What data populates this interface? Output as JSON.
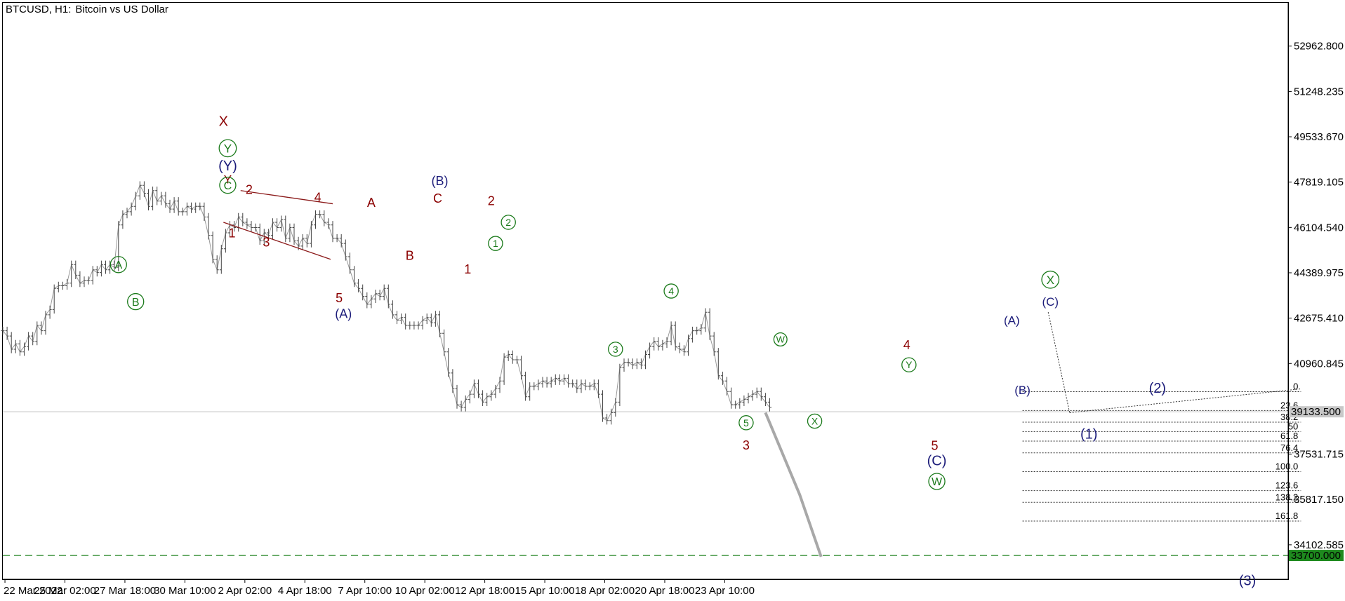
{
  "header": {
    "symbol": "BTCUSD",
    "timeframe": "H1:",
    "description": "Bitcoin vs US Dollar"
  },
  "chart_data": {
    "type": "line",
    "title": "BTCUSD, H1:  Bitcoin vs US Dollar",
    "ylim": [
      32800,
      54600
    ],
    "y_ticks": [
      52962.8,
      51248.235,
      49533.67,
      47819.105,
      46104.54,
      44389.975,
      42675.41,
      40960.845,
      37531.715,
      35817.15,
      34102.585
    ],
    "y_tick_labels": [
      "52962.800",
      "51248.235",
      "49533.670",
      "47819.105",
      "46104.540",
      "44389.975",
      "42675.410",
      "40960.845",
      "37531.715",
      "35817.150",
      "34102.585"
    ],
    "x_tick_labels": [
      "22 Mar 2022",
      "25 Mar 02:00",
      "27 Mar 18:00",
      "30 Mar 10:00",
      "2 Apr 02:00",
      "4 Apr 18:00",
      "7 Apr 10:00",
      "10 Apr 02:00",
      "12 Apr 18:00",
      "15 Apr 10:00",
      "18 Apr 02:00",
      "20 Apr 18:00",
      "23 Apr 10:00"
    ],
    "x_tick_pos": [
      0.5,
      14.5,
      28.5,
      42.5,
      56.5,
      70.5,
      84.5,
      98.5,
      112.5,
      126.5,
      140.5,
      154.5,
      168.5
    ],
    "xlim": [
      0,
      200
    ],
    "price_path": [
      [
        0,
        42200
      ],
      [
        1,
        42000
      ],
      [
        2,
        41500
      ],
      [
        3,
        41700
      ],
      [
        4,
        41400
      ],
      [
        5,
        41600
      ],
      [
        6,
        42000
      ],
      [
        7,
        41800
      ],
      [
        8,
        42400
      ],
      [
        9,
        42200
      ],
      [
        10,
        42800
      ],
      [
        11,
        43000
      ],
      [
        12,
        43800
      ],
      [
        13,
        43900
      ],
      [
        14,
        43900
      ],
      [
        15,
        44000
      ],
      [
        16,
        44700
      ],
      [
        17,
        44300
      ],
      [
        18,
        44000
      ],
      [
        19,
        44100
      ],
      [
        20,
        44100
      ],
      [
        21,
        44500
      ],
      [
        22,
        44400
      ],
      [
        23,
        44700
      ],
      [
        24,
        44500
      ],
      [
        25,
        44700
      ],
      [
        26,
        44600
      ],
      [
        27,
        46200
      ],
      [
        28,
        46600
      ],
      [
        29,
        46700
      ],
      [
        30,
        46900
      ],
      [
        31,
        47300
      ],
      [
        32,
        47700
      ],
      [
        33,
        47400
      ],
      [
        34,
        46900
      ],
      [
        35,
        47500
      ],
      [
        36,
        47100
      ],
      [
        37,
        47300
      ],
      [
        38,
        47000
      ],
      [
        39,
        46800
      ],
      [
        40,
        47100
      ],
      [
        41,
        46700
      ],
      [
        42,
        46700
      ],
      [
        43,
        46900
      ],
      [
        44,
        46800
      ],
      [
        45,
        46900
      ],
      [
        46,
        46900
      ],
      [
        47,
        46500
      ],
      [
        48,
        45800
      ],
      [
        49,
        44900
      ],
      [
        50,
        44500
      ],
      [
        51,
        45300
      ],
      [
        52,
        45900
      ],
      [
        53,
        46200
      ],
      [
        54,
        46100
      ],
      [
        55,
        46500
      ],
      [
        56,
        46300
      ],
      [
        57,
        46200
      ],
      [
        58,
        46100
      ],
      [
        59,
        46100
      ],
      [
        60,
        45600
      ],
      [
        61,
        45900
      ],
      [
        62,
        45800
      ],
      [
        63,
        46300
      ],
      [
        64,
        46100
      ],
      [
        65,
        46400
      ],
      [
        66,
        45700
      ],
      [
        67,
        46100
      ],
      [
        68,
        45600
      ],
      [
        69,
        45400
      ],
      [
        70,
        45700
      ],
      [
        71,
        45500
      ],
      [
        72,
        46200
      ],
      [
        73,
        46600
      ],
      [
        74,
        46600
      ],
      [
        75,
        46300
      ],
      [
        76,
        46200
      ],
      [
        77,
        45700
      ],
      [
        78,
        45700
      ],
      [
        79,
        45500
      ],
      [
        80,
        45000
      ],
      [
        81,
        44500
      ],
      [
        82,
        44000
      ],
      [
        83,
        43800
      ],
      [
        84,
        43500
      ],
      [
        85,
        43200
      ],
      [
        86,
        43400
      ],
      [
        87,
        43600
      ],
      [
        88,
        43500
      ],
      [
        89,
        43800
      ],
      [
        90,
        43200
      ],
      [
        91,
        42800
      ],
      [
        92,
        42600
      ],
      [
        93,
        42700
      ],
      [
        94,
        42400
      ],
      [
        95,
        42400
      ],
      [
        96,
        42400
      ],
      [
        97,
        42400
      ],
      [
        98,
        42600
      ],
      [
        99,
        42700
      ],
      [
        100,
        42500
      ],
      [
        101,
        42800
      ],
      [
        102,
        42100
      ],
      [
        103,
        41400
      ],
      [
        104,
        40600
      ],
      [
        105,
        40000
      ],
      [
        106,
        39400
      ],
      [
        107,
        39300
      ],
      [
        108,
        39600
      ],
      [
        109,
        39800
      ],
      [
        110,
        40200
      ],
      [
        111,
        39800
      ],
      [
        112,
        39500
      ],
      [
        113,
        39700
      ],
      [
        114,
        39800
      ],
      [
        115,
        40000
      ],
      [
        116,
        40300
      ],
      [
        117,
        41200
      ],
      [
        118,
        41300
      ],
      [
        119,
        41100
      ],
      [
        120,
        41100
      ],
      [
        121,
        40500
      ],
      [
        122,
        39700
      ],
      [
        123,
        40100
      ],
      [
        124,
        40100
      ],
      [
        125,
        40200
      ],
      [
        126,
        40300
      ],
      [
        127,
        40200
      ],
      [
        128,
        40300
      ],
      [
        129,
        40400
      ],
      [
        130,
        40300
      ],
      [
        131,
        40400
      ],
      [
        132,
        40200
      ],
      [
        133,
        40200
      ],
      [
        134,
        40000
      ],
      [
        135,
        40200
      ],
      [
        136,
        40100
      ],
      [
        137,
        40100
      ],
      [
        138,
        40200
      ],
      [
        139,
        39800
      ],
      [
        140,
        38900
      ],
      [
        141,
        38800
      ],
      [
        142,
        39100
      ],
      [
        143,
        39500
      ],
      [
        144,
        40800
      ],
      [
        145,
        41000
      ],
      [
        146,
        41000
      ],
      [
        147,
        40900
      ],
      [
        148,
        41000
      ],
      [
        149,
        40900
      ],
      [
        150,
        41300
      ],
      [
        151,
        41600
      ],
      [
        152,
        41800
      ],
      [
        153,
        41600
      ],
      [
        154,
        41700
      ],
      [
        155,
        41800
      ],
      [
        156,
        42400
      ],
      [
        157,
        41600
      ],
      [
        158,
        41500
      ],
      [
        159,
        41400
      ],
      [
        160,
        41900
      ],
      [
        161,
        42200
      ],
      [
        162,
        42200
      ],
      [
        163,
        42300
      ],
      [
        164,
        42900
      ],
      [
        165,
        42000
      ],
      [
        166,
        41400
      ],
      [
        167,
        40500
      ],
      [
        168,
        40300
      ],
      [
        169,
        39900
      ],
      [
        170,
        39400
      ],
      [
        171,
        39400
      ],
      [
        172,
        39500
      ],
      [
        173,
        39600
      ],
      [
        174,
        39700
      ],
      [
        175,
        39800
      ],
      [
        176,
        39900
      ],
      [
        177,
        39700
      ],
      [
        178,
        39500
      ],
      [
        179,
        39300
      ]
    ],
    "current_price": 39133.5,
    "current_price_label": "39133.500",
    "target_price": 33700,
    "target_price_label": "33700.000",
    "fibonacci": {
      "levels": [
        "0",
        "23.6",
        "38.2",
        "50",
        "61.8",
        "76.4",
        "100.0",
        "123.6",
        "138.2",
        "161.8"
      ],
      "prices": [
        39895,
        39180,
        38740,
        38385,
        38025,
        37580,
        36870,
        36150,
        35710,
        35000
      ]
    },
    "forecast_path": [
      [
        178,
        39100
      ],
      [
        186,
        36000
      ],
      [
        191,
        33650
      ]
    ],
    "wave_labels": [
      {
        "text": "A",
        "x": 27,
        "price": 44700,
        "color": "#1a7a1a",
        "circle": true,
        "size": 16
      },
      {
        "text": "B",
        "x": 31,
        "price": 43300,
        "color": "#1a7a1a",
        "circle": true,
        "size": 16
      },
      {
        "text": "X",
        "x": 51.5,
        "price": 50130,
        "color": "#8b0000",
        "circle": false,
        "size": 20
      },
      {
        "text": "Y",
        "x": 52.5,
        "price": 49100,
        "color": "#1a7a1a",
        "circle": true,
        "size": 17
      },
      {
        "text": "(Y)",
        "x": 52.5,
        "price": 48450,
        "color": "#1c1c7a",
        "circle": false,
        "size": 20
      },
      {
        "text": "Y",
        "x": 52.5,
        "price": 47930,
        "color": "#8b0000",
        "circle": false,
        "size": 17
      },
      {
        "text": "C",
        "x": 52.5,
        "price": 47700,
        "color": "#1a7a1a",
        "circle": true,
        "size": 16
      },
      {
        "text": "2",
        "x": 57.5,
        "price": 47550,
        "color": "#8b0000",
        "circle": false,
        "size": 18
      },
      {
        "text": "4",
        "x": 73.5,
        "price": 47250,
        "color": "#8b0000",
        "circle": false,
        "size": 18
      },
      {
        "text": "1",
        "x": 53.5,
        "price": 45900,
        "color": "#8b0000",
        "circle": false,
        "size": 18
      },
      {
        "text": "3",
        "x": 61.5,
        "price": 45550,
        "color": "#8b0000",
        "circle": false,
        "size": 18
      },
      {
        "text": "5",
        "x": 78.5,
        "price": 43450,
        "color": "#8b0000",
        "circle": false,
        "size": 18
      },
      {
        "text": "(A)",
        "x": 79.5,
        "price": 42850,
        "color": "#1c1c7a",
        "circle": false,
        "size": 18
      },
      {
        "text": "A",
        "x": 86,
        "price": 47050,
        "color": "#8b0000",
        "circle": false,
        "size": 18
      },
      {
        "text": "B",
        "x": 95,
        "price": 45050,
        "color": "#8b0000",
        "circle": false,
        "size": 18
      },
      {
        "text": "(B)",
        "x": 102,
        "price": 47870,
        "color": "#1c1c7a",
        "circle": false,
        "size": 18
      },
      {
        "text": "C",
        "x": 101.5,
        "price": 47220,
        "color": "#8b0000",
        "circle": false,
        "size": 18
      },
      {
        "text": "2",
        "x": 114,
        "price": 47120,
        "color": "#8b0000",
        "circle": false,
        "size": 18
      },
      {
        "text": "1",
        "x": 108.5,
        "price": 44540,
        "color": "#8b0000",
        "circle": false,
        "size": 18
      },
      {
        "text": "2",
        "x": 118,
        "price": 46300,
        "color": "#1a7a1a",
        "circle": true,
        "size": 14
      },
      {
        "text": "1",
        "x": 115,
        "price": 45500,
        "color": "#1a7a1a",
        "circle": true,
        "size": 14
      },
      {
        "text": "4",
        "x": 156,
        "price": 43700,
        "color": "#1a7a1a",
        "circle": true,
        "size": 14
      },
      {
        "text": "3",
        "x": 143,
        "price": 41500,
        "color": "#1a7a1a",
        "circle": true,
        "size": 14
      },
      {
        "text": "W",
        "x": 181.5,
        "price": 41870,
        "color": "#1a7a1a",
        "circle": true,
        "size": 13
      },
      {
        "text": "5",
        "x": 173.5,
        "price": 38720,
        "color": "#1a7a1a",
        "circle": true,
        "size": 14
      },
      {
        "text": "3",
        "x": 173.5,
        "price": 37880,
        "color": "#8b0000",
        "circle": false,
        "size": 18
      },
      {
        "text": "X",
        "x": 189.5,
        "price": 38780,
        "color": "#1a7a1a",
        "circle": true,
        "size": 14
      },
      {
        "text": "4",
        "x": 211,
        "price": 41670,
        "color": "#8b0000",
        "circle": false,
        "size": 18
      },
      {
        "text": "Y",
        "x": 211.5,
        "price": 40910,
        "color": "#1a7a1a",
        "circle": true,
        "size": 14
      },
      {
        "text": "5",
        "x": 217.5,
        "price": 37870,
        "color": "#8b0000",
        "circle": false,
        "size": 18
      },
      {
        "text": "(C)",
        "x": 218,
        "price": 37300,
        "color": "#1c1c7a",
        "circle": false,
        "size": 20
      },
      {
        "text": "W",
        "x": 218,
        "price": 36500,
        "color": "#1a7a1a",
        "circle": true,
        "size": 16
      },
      {
        "text": "(A)",
        "x": 235.5,
        "price": 42600,
        "color": "#1c1c7a",
        "circle": false,
        "size": 17
      },
      {
        "text": "(B)",
        "x": 238,
        "price": 39960,
        "color": "#1c1c7a",
        "circle": false,
        "size": 17
      },
      {
        "text": "X",
        "x": 244.5,
        "price": 44130,
        "color": "#1a7a1a",
        "circle": true,
        "size": 17
      },
      {
        "text": "(C)",
        "x": 244.5,
        "price": 43300,
        "color": "#1c1c7a",
        "circle": false,
        "size": 17
      },
      {
        "text": "(2)",
        "x": 269.5,
        "price": 40040,
        "color": "#1c1c7a",
        "circle": false,
        "size": 20
      },
      {
        "text": "(1)",
        "x": 253.5,
        "price": 38310,
        "color": "#1c1c7a",
        "circle": false,
        "size": 20
      },
      {
        "text": "(3)",
        "x": 290.5,
        "price": 32770,
        "color": "#1c1c7a",
        "circle": false,
        "size": 20
      }
    ],
    "triangle_lines": [
      [
        [
          55.5,
          47500
        ],
        [
          77,
          47000
        ]
      ],
      [
        [
          51.5,
          46300
        ],
        [
          76.5,
          44900
        ]
      ]
    ]
  }
}
